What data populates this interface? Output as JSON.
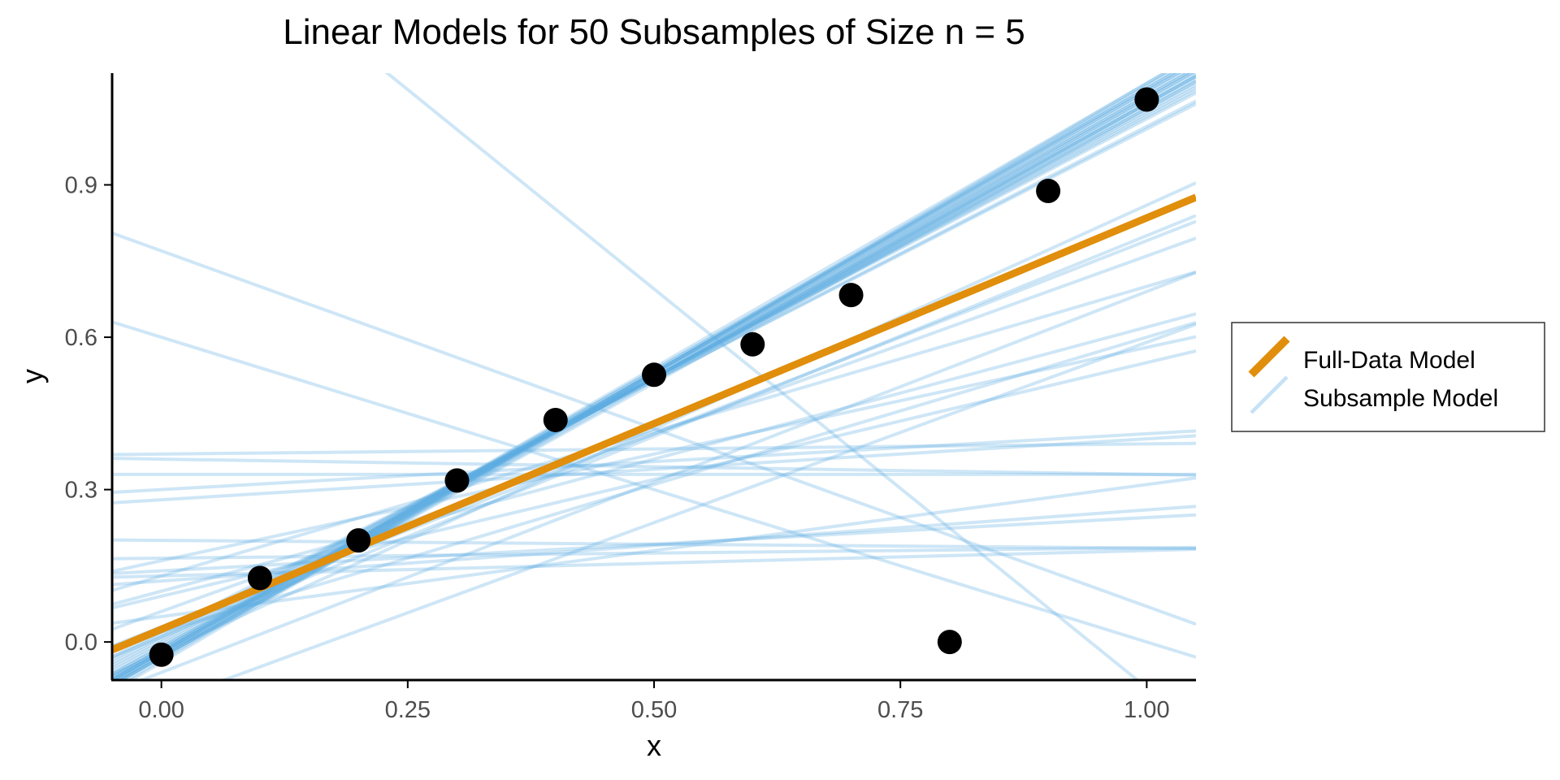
{
  "chart_data": {
    "type": "scatter",
    "title": "Linear Models for 50 Subsamples of Size n = 5",
    "xlabel": "x",
    "ylabel": "y",
    "xlim": [
      -0.05,
      1.05
    ],
    "ylim": [
      -0.075,
      1.12
    ],
    "x_ticks": [
      0.0,
      0.25,
      0.5,
      0.75,
      1.0
    ],
    "x_tick_labels": [
      "0.00",
      "0.25",
      "0.50",
      "0.75",
      "1.00"
    ],
    "y_ticks": [
      0.0,
      0.3,
      0.6,
      0.9
    ],
    "y_tick_labels": [
      "0.0",
      "0.3",
      "0.6",
      "0.9"
    ],
    "grid": false,
    "legend": {
      "position": "right",
      "entries": [
        "Full-Data Model",
        "Subsample Model"
      ]
    },
    "points": [
      {
        "x": 0.0,
        "y": -0.025
      },
      {
        "x": 0.1,
        "y": 0.126
      },
      {
        "x": 0.2,
        "y": 0.2
      },
      {
        "x": 0.3,
        "y": 0.318
      },
      {
        "x": 0.4,
        "y": 0.437
      },
      {
        "x": 0.5,
        "y": 0.526
      },
      {
        "x": 0.6,
        "y": 0.586
      },
      {
        "x": 0.7,
        "y": 0.683
      },
      {
        "x": 0.8,
        "y": 0.0
      },
      {
        "x": 0.9,
        "y": 0.888
      },
      {
        "x": 1.0,
        "y": 1.068
      }
    ],
    "full_model": {
      "intercept": 0.025,
      "slope": 0.81
    },
    "subsample_models": [
      {
        "intercept": -0.03,
        "slope": 1.1
      },
      {
        "intercept": -0.02,
        "slope": 1.08
      },
      {
        "intercept": -0.025,
        "slope": 1.09
      },
      {
        "intercept": -0.015,
        "slope": 1.07
      },
      {
        "intercept": -0.03,
        "slope": 1.12
      },
      {
        "intercept": -0.01,
        "slope": 1.06
      },
      {
        "intercept": -0.035,
        "slope": 1.13
      },
      {
        "intercept": -0.02,
        "slope": 1.11
      },
      {
        "intercept": -0.005,
        "slope": 1.05
      },
      {
        "intercept": -0.025,
        "slope": 1.1
      },
      {
        "intercept": -0.015,
        "slope": 1.09
      },
      {
        "intercept": -0.03,
        "slope": 1.08
      },
      {
        "intercept": -0.02,
        "slope": 1.12
      },
      {
        "intercept": -0.01,
        "slope": 1.07
      },
      {
        "intercept": -0.04,
        "slope": 1.14
      },
      {
        "intercept": -0.02,
        "slope": 1.09
      },
      {
        "intercept": -0.025,
        "slope": 1.11
      },
      {
        "intercept": -0.015,
        "slope": 1.1
      },
      {
        "intercept": -0.03,
        "slope": 1.09
      },
      {
        "intercept": 0.0,
        "slope": 1.04
      },
      {
        "intercept": 0.015,
        "slope": 1.0
      },
      {
        "intercept": 0.01,
        "slope": 1.02
      },
      {
        "intercept": 0.02,
        "slope": 0.99
      },
      {
        "intercept": 0.005,
        "slope": 1.03
      },
      {
        "intercept": -0.02,
        "slope": 1.1
      },
      {
        "intercept": -0.02,
        "slope": 0.88
      },
      {
        "intercept": 0.01,
        "slope": 0.79
      },
      {
        "intercept": 0.03,
        "slope": 0.76
      },
      {
        "intercept": 0.06,
        "slope": 0.7
      },
      {
        "intercept": -0.06,
        "slope": 0.75
      },
      {
        "intercept": 0.13,
        "slope": 0.57
      },
      {
        "intercept": 0.1,
        "slope": 0.52
      },
      {
        "intercept": -0.12,
        "slope": 0.71
      },
      {
        "intercept": 0.02,
        "slope": 0.58
      },
      {
        "intercept": 0.09,
        "slope": 0.46
      },
      {
        "intercept": 0.16,
        "slope": 0.42
      },
      {
        "intercept": 0.28,
        "slope": 0.12
      },
      {
        "intercept": 0.3,
        "slope": 0.11
      },
      {
        "intercept": 0.33,
        "slope": 0.0
      },
      {
        "intercept": 0.36,
        "slope": -0.03
      },
      {
        "intercept": 0.14,
        "slope": 0.105
      },
      {
        "intercept": 0.13,
        "slope": 0.05
      },
      {
        "intercept": 0.2,
        "slope": -0.015
      },
      {
        "intercept": 0.165,
        "slope": 0.02
      },
      {
        "intercept": 0.37,
        "slope": 0.02
      },
      {
        "intercept": 0.77,
        "slope": -0.7
      },
      {
        "intercept": 0.6,
        "slope": -0.6
      },
      {
        "intercept": 1.48,
        "slope": -1.57
      },
      {
        "intercept": 0.12,
        "slope": 0.14
      },
      {
        "intercept": 0.05,
        "slope": 0.26
      }
    ]
  },
  "colors": {
    "full_model": "#E08E0B",
    "subsample_model": "#5DADE2",
    "points": "#000000",
    "axis": "#000000",
    "tick_label": "#4D4D4D"
  }
}
